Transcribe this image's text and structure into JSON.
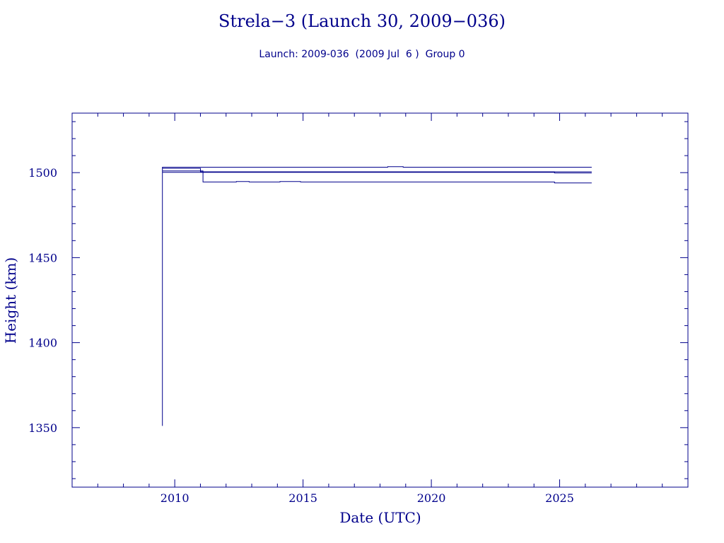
{
  "chart_data": {
    "type": "line",
    "title": "Strela−3 (Launch 30, 2009−036)",
    "subtitle": "Launch: 2009-036  (2009 Jul  6 )  Group 0",
    "xlabel": "Date (UTC)",
    "ylabel": "Height (km)",
    "xlim": [
      2006.0,
      2030.0
    ],
    "ylim": [
      1315,
      1535
    ],
    "x_ticks": [
      2010,
      2015,
      2020,
      2025
    ],
    "x_tick_labels": [
      "2010",
      "2015",
      "2020",
      "2025"
    ],
    "y_ticks": [
      1350,
      1400,
      1450,
      1500
    ],
    "y_tick_labels": [
      "1350",
      "1400",
      "1450",
      "1500"
    ],
    "grid": false,
    "color": "#00008b",
    "series": [
      {
        "x": [
          2009.52,
          2009.52,
          2018.3,
          2018.3,
          2018.9,
          2018.9,
          2026.25
        ],
        "y": [
          1351,
          1503.2,
          1503.2,
          1503.5,
          1503.5,
          1503.2,
          1503.2
        ]
      },
      {
        "x": [
          2009.52,
          2011.0,
          2011.0,
          2026.25
        ],
        "y": [
          1502.5,
          1502.5,
          1500.5,
          1500.5
        ]
      },
      {
        "x": [
          2009.52,
          2011.1,
          2011.1,
          2012.4,
          2012.4,
          2012.9,
          2012.9,
          2014.1,
          2014.1,
          2014.9,
          2014.9,
          2024.8,
          2024.8,
          2026.25
        ],
        "y": [
          1501.0,
          1501.0,
          1494.5,
          1494.5,
          1494.8,
          1494.8,
          1494.5,
          1494.5,
          1494.8,
          1494.8,
          1494.5,
          1494.5,
          1493.9,
          1493.9
        ]
      },
      {
        "x": [
          2009.52,
          2024.8,
          2024.8,
          2026.25
        ],
        "y": [
          1500.2,
          1500.2,
          1499.8,
          1499.8
        ]
      }
    ]
  }
}
